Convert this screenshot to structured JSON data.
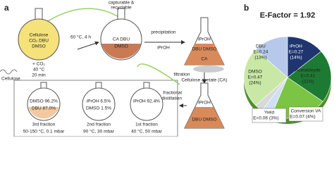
{
  "panel_a": {
    "label": "a",
    "flask1": [
      "Cellulose",
      "CO₂ DBU",
      "DMSO"
    ],
    "dissolution": [
      "+ CO₂",
      "40 °C",
      "20 min"
    ],
    "cellulose": "Cellulose",
    "reaction": "60 °C, 4 h",
    "recyclable": [
      "capturable &",
      "recyclable"
    ],
    "flask2": [
      "CA  DBU",
      "DMSO"
    ],
    "precipitation": [
      "precipitation",
      "iPrOH"
    ],
    "flask3": [
      "iPrOH",
      "DBU  DMSO",
      "CA"
    ],
    "filtration": "filtration",
    "product": "Cellulose acetate (CA)",
    "flask4": [
      "iPrOH",
      "DBU  DMSO"
    ],
    "distillation": [
      "fractional",
      "distillation"
    ],
    "fractions": [
      {
        "content": [
          "DMSO 96.2%",
          "DBU 87.0%"
        ],
        "name": "3rd fraction",
        "conditions": "50-150 °C, 0.1 mbar"
      },
      {
        "content": [
          "iPrOH 6.5%",
          "DMSO 1.5%"
        ],
        "name": "2nd fraction",
        "conditions": "90 °C, 30 mbar"
      },
      {
        "content": [
          "iPrOH 92.4%"
        ],
        "name": "1st fraction",
        "conditions": "40 °C, 50 mbar"
      }
    ]
  },
  "chart_data": {
    "type": "pie",
    "label": "b",
    "title": "E-Factor = 1.92",
    "categories": [
      "iPrOH",
      "Acetaldeyde",
      null,
      "Conversion VA",
      "Yield",
      "DMSO",
      "DBU"
    ],
    "e_labels": [
      "E=0.27",
      "E=0.41",
      null,
      "E=0.07",
      "E=0.06",
      "E=0.47",
      "E=0.24"
    ],
    "values": [
      14,
      21,
      21,
      4,
      3,
      24,
      13
    ],
    "value_labels": [
      "(14%)",
      "(21%)",
      null,
      "(4%)",
      "(3%)",
      "(24%)",
      "(13%)"
    ],
    "colors": [
      "#1f3570",
      "#1d7a32",
      "#7cc443",
      "#cfe0f2",
      "#d9d9d9",
      "#c9e8a6",
      "#b7c9ea"
    ]
  }
}
